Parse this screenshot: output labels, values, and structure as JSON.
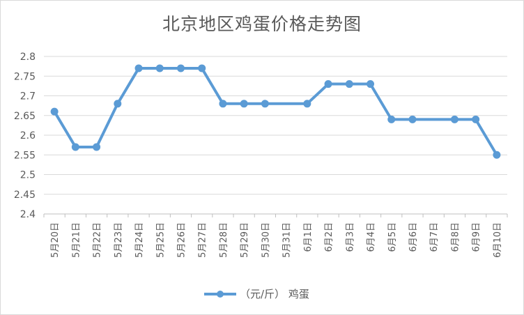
{
  "chart_data": {
    "type": "line",
    "title": "北京地区鸡蛋价格走势图",
    "categories": [
      "5月20日",
      "5月21日",
      "5月22日",
      "5月23日",
      "5月24日",
      "5月25日",
      "5月26日",
      "5月27日",
      "5月28日",
      "5月29日",
      "5月30日",
      "5月31日",
      "6月1日",
      "6月2日",
      "6月3日",
      "6月4日",
      "6月5日",
      "6月6日",
      "6月7日",
      "6月8日",
      "6月9日",
      "6月10日"
    ],
    "series": [
      {
        "name": "（元/斤） 鸡蛋",
        "values": [
          2.66,
          2.57,
          2.57,
          2.68,
          2.77,
          2.77,
          2.77,
          2.77,
          2.68,
          2.68,
          2.68,
          2.68,
          2.68,
          2.73,
          2.73,
          2.73,
          2.64,
          2.64,
          2.64,
          2.64,
          2.64,
          2.55
        ],
        "markers": [
          true,
          true,
          true,
          true,
          true,
          true,
          true,
          true,
          true,
          true,
          true,
          false,
          true,
          true,
          true,
          true,
          true,
          true,
          false,
          true,
          true,
          true
        ],
        "color": "#5b9bd5"
      }
    ],
    "ylim": [
      2.4,
      2.8
    ],
    "yticks": [
      "2.4",
      "2.45",
      "2.5",
      "2.55",
      "2.6",
      "2.65",
      "2.7",
      "2.75",
      "2.8"
    ],
    "grid": true,
    "legend_position": "bottom",
    "xlabel": "",
    "ylabel": ""
  }
}
